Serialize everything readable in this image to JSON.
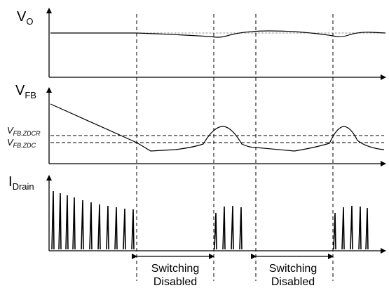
{
  "labels": {
    "vo_main": "V",
    "vo_sub": "O",
    "vfb_main": "V",
    "vfb_sub": "FB",
    "zdcr_main": "V",
    "zdcr_sub": "FB.ZDCR",
    "zdc_main": "V",
    "zdc_sub": "FB.ZDC",
    "idrain_main": "I",
    "idrain_sub": "Drain"
  },
  "intervals": [
    {
      "line1": "Switching",
      "line2": "Disabled"
    },
    {
      "line1": "Switching",
      "line2": "Disabled"
    }
  ],
  "colors": {
    "line": "#000000",
    "background": "#ffffff"
  }
}
